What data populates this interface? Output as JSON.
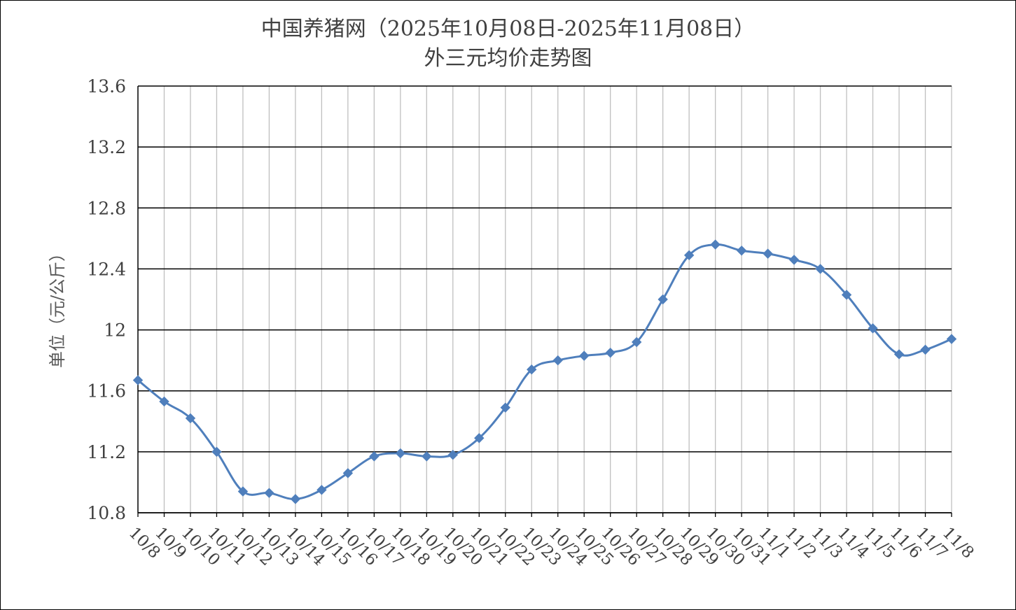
{
  "chart_data": {
    "type": "line",
    "title": "中国养猪网（2025年10月08日-2025年11月08日）",
    "subtitle": "外三元均价走势图",
    "ylabel": "单位（元/公斤）",
    "xlabel": "",
    "ylim": [
      10.8,
      13.6
    ],
    "yticks": [
      "10.8",
      "11.2",
      "11.6",
      "12",
      "12.4",
      "12.8",
      "13.2",
      "13.6"
    ],
    "grid": true,
    "line_color": "#4F7FBC",
    "categories": [
      "10/8",
      "10/9",
      "10/10",
      "10/11",
      "10/12",
      "10/13",
      "10/14",
      "10/15",
      "10/16",
      "10/17",
      "10/18",
      "10/19",
      "10/20",
      "10/21",
      "10/22",
      "10/23",
      "10/24",
      "10/25",
      "10/26",
      "10/27",
      "10/28",
      "10/29",
      "10/30",
      "10/31",
      "11/1",
      "11/2",
      "11/3",
      "11/4",
      "11/5",
      "11/6",
      "11/7",
      "11/8"
    ],
    "series": [
      {
        "values": [
          11.67,
          11.53,
          11.42,
          11.2,
          10.94,
          10.93,
          10.89,
          10.95,
          11.06,
          11.17,
          11.19,
          11.17,
          11.18,
          11.29,
          11.49,
          11.74,
          11.8,
          11.83,
          11.85,
          11.92,
          12.2,
          12.49,
          12.56,
          12.52,
          12.5,
          12.46,
          12.4,
          12.23,
          12.01,
          11.84,
          11.87,
          11.94
        ]
      }
    ]
  }
}
